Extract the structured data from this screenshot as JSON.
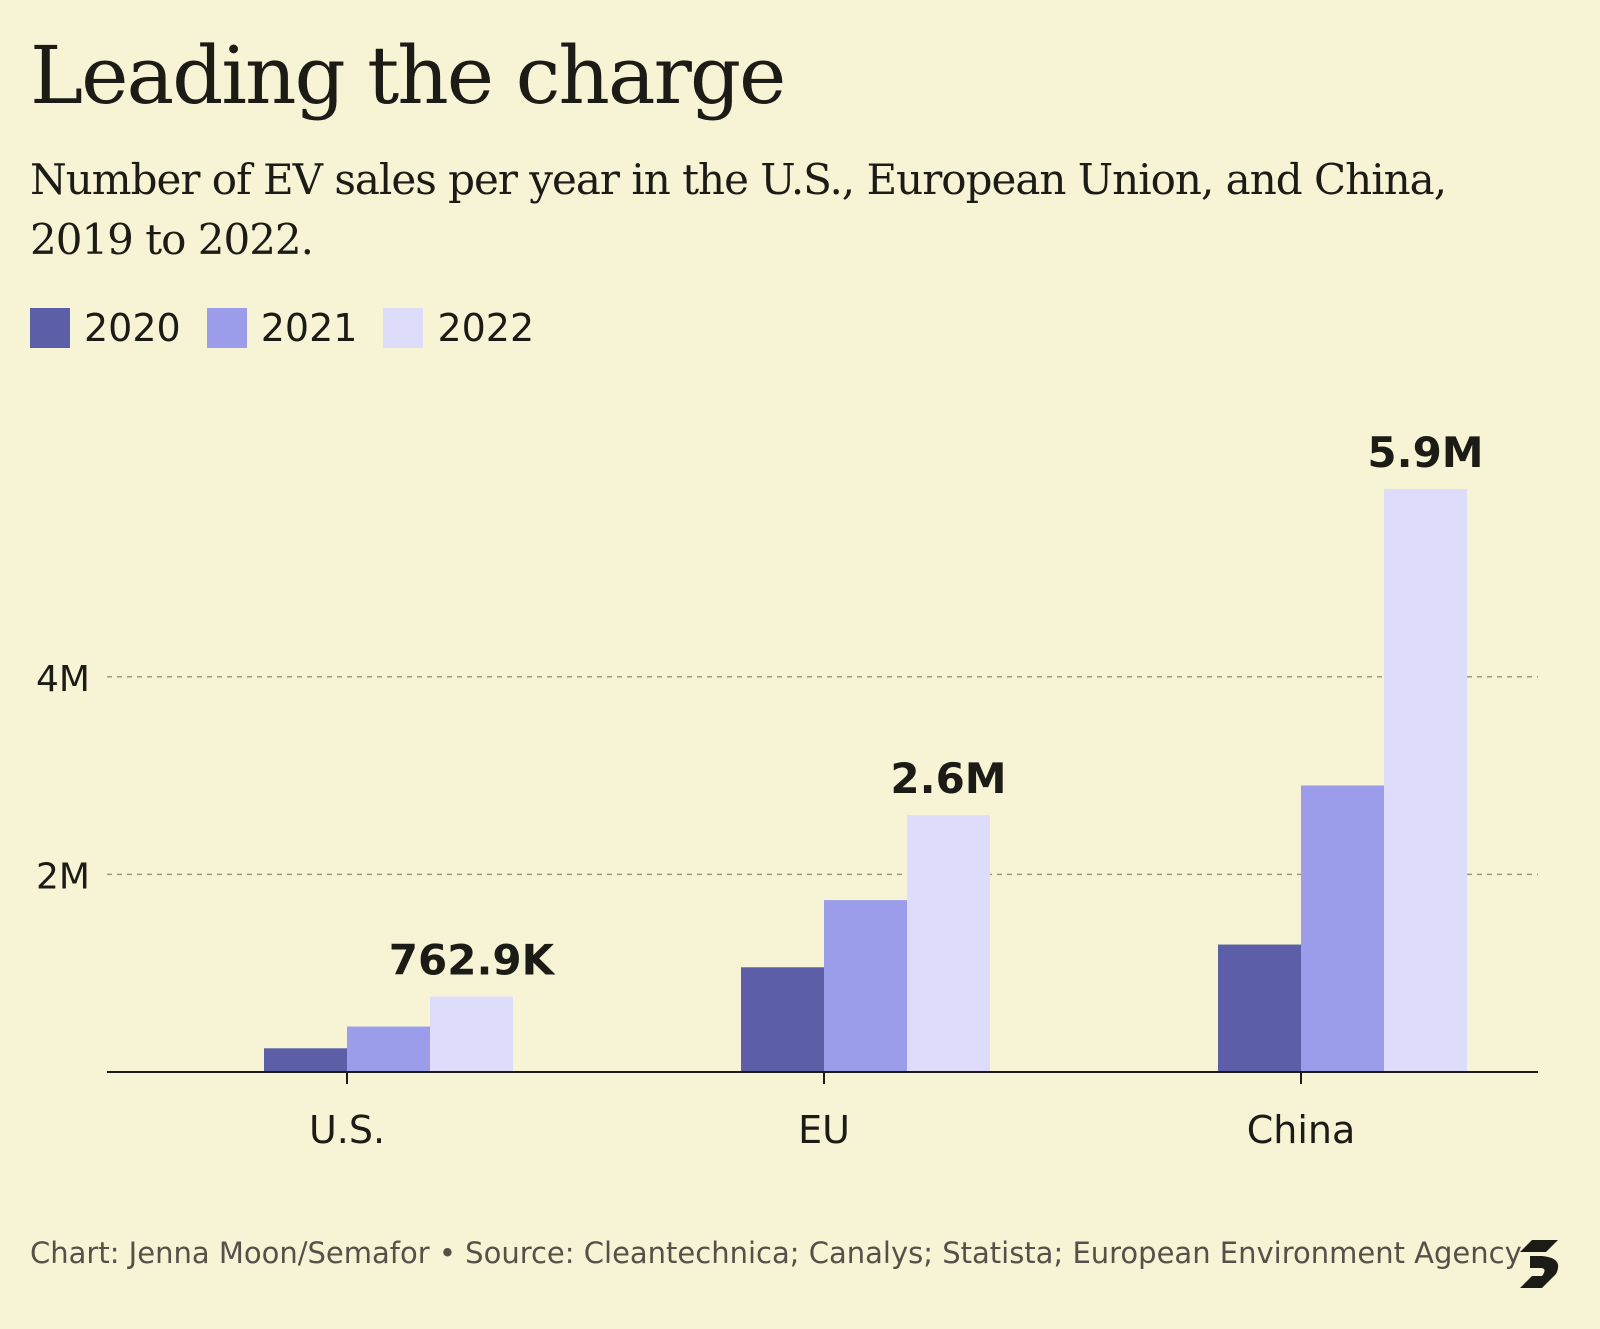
{
  "title": "Leading the charge",
  "subtitle": "Number of EV sales per year in the U.S., European Union, and China, 2019 to 2022.",
  "footer": "Chart: Jenna Moon/Semafor • Source: Cleantechnica; Canalys; Statista; European Environment Agency",
  "logo_icon": "semafor-s-logo-icon",
  "colors": {
    "background": "#f7f4d6",
    "text": "#1c1b16",
    "axis": "#1c1b16",
    "grid": "#9b988a"
  },
  "chart_data": {
    "type": "bar",
    "categories": [
      "U.S.",
      "EU",
      "China"
    ],
    "series": [
      {
        "name": "2020",
        "color": "#5c5ea8",
        "values": [
          0.24,
          1.06,
          1.29
        ]
      },
      {
        "name": "2021",
        "color": "#9b9deb",
        "values": [
          0.46,
          1.74,
          2.9
        ]
      },
      {
        "name": "2022",
        "color": "#dddcfa",
        "values": [
          0.7629,
          2.6,
          5.9
        ]
      }
    ],
    "data_labels": [
      "762.9K",
      "2.6M",
      "5.9M"
    ],
    "data_labels_series": "2022",
    "yticks": [
      {
        "value": 2,
        "label": "2M"
      },
      {
        "value": 4,
        "label": "4M"
      }
    ],
    "value_unit": "M",
    "ylim": [
      0,
      6
    ],
    "grid": true,
    "legend_position": "top-left",
    "xlabel": "",
    "ylabel": ""
  }
}
